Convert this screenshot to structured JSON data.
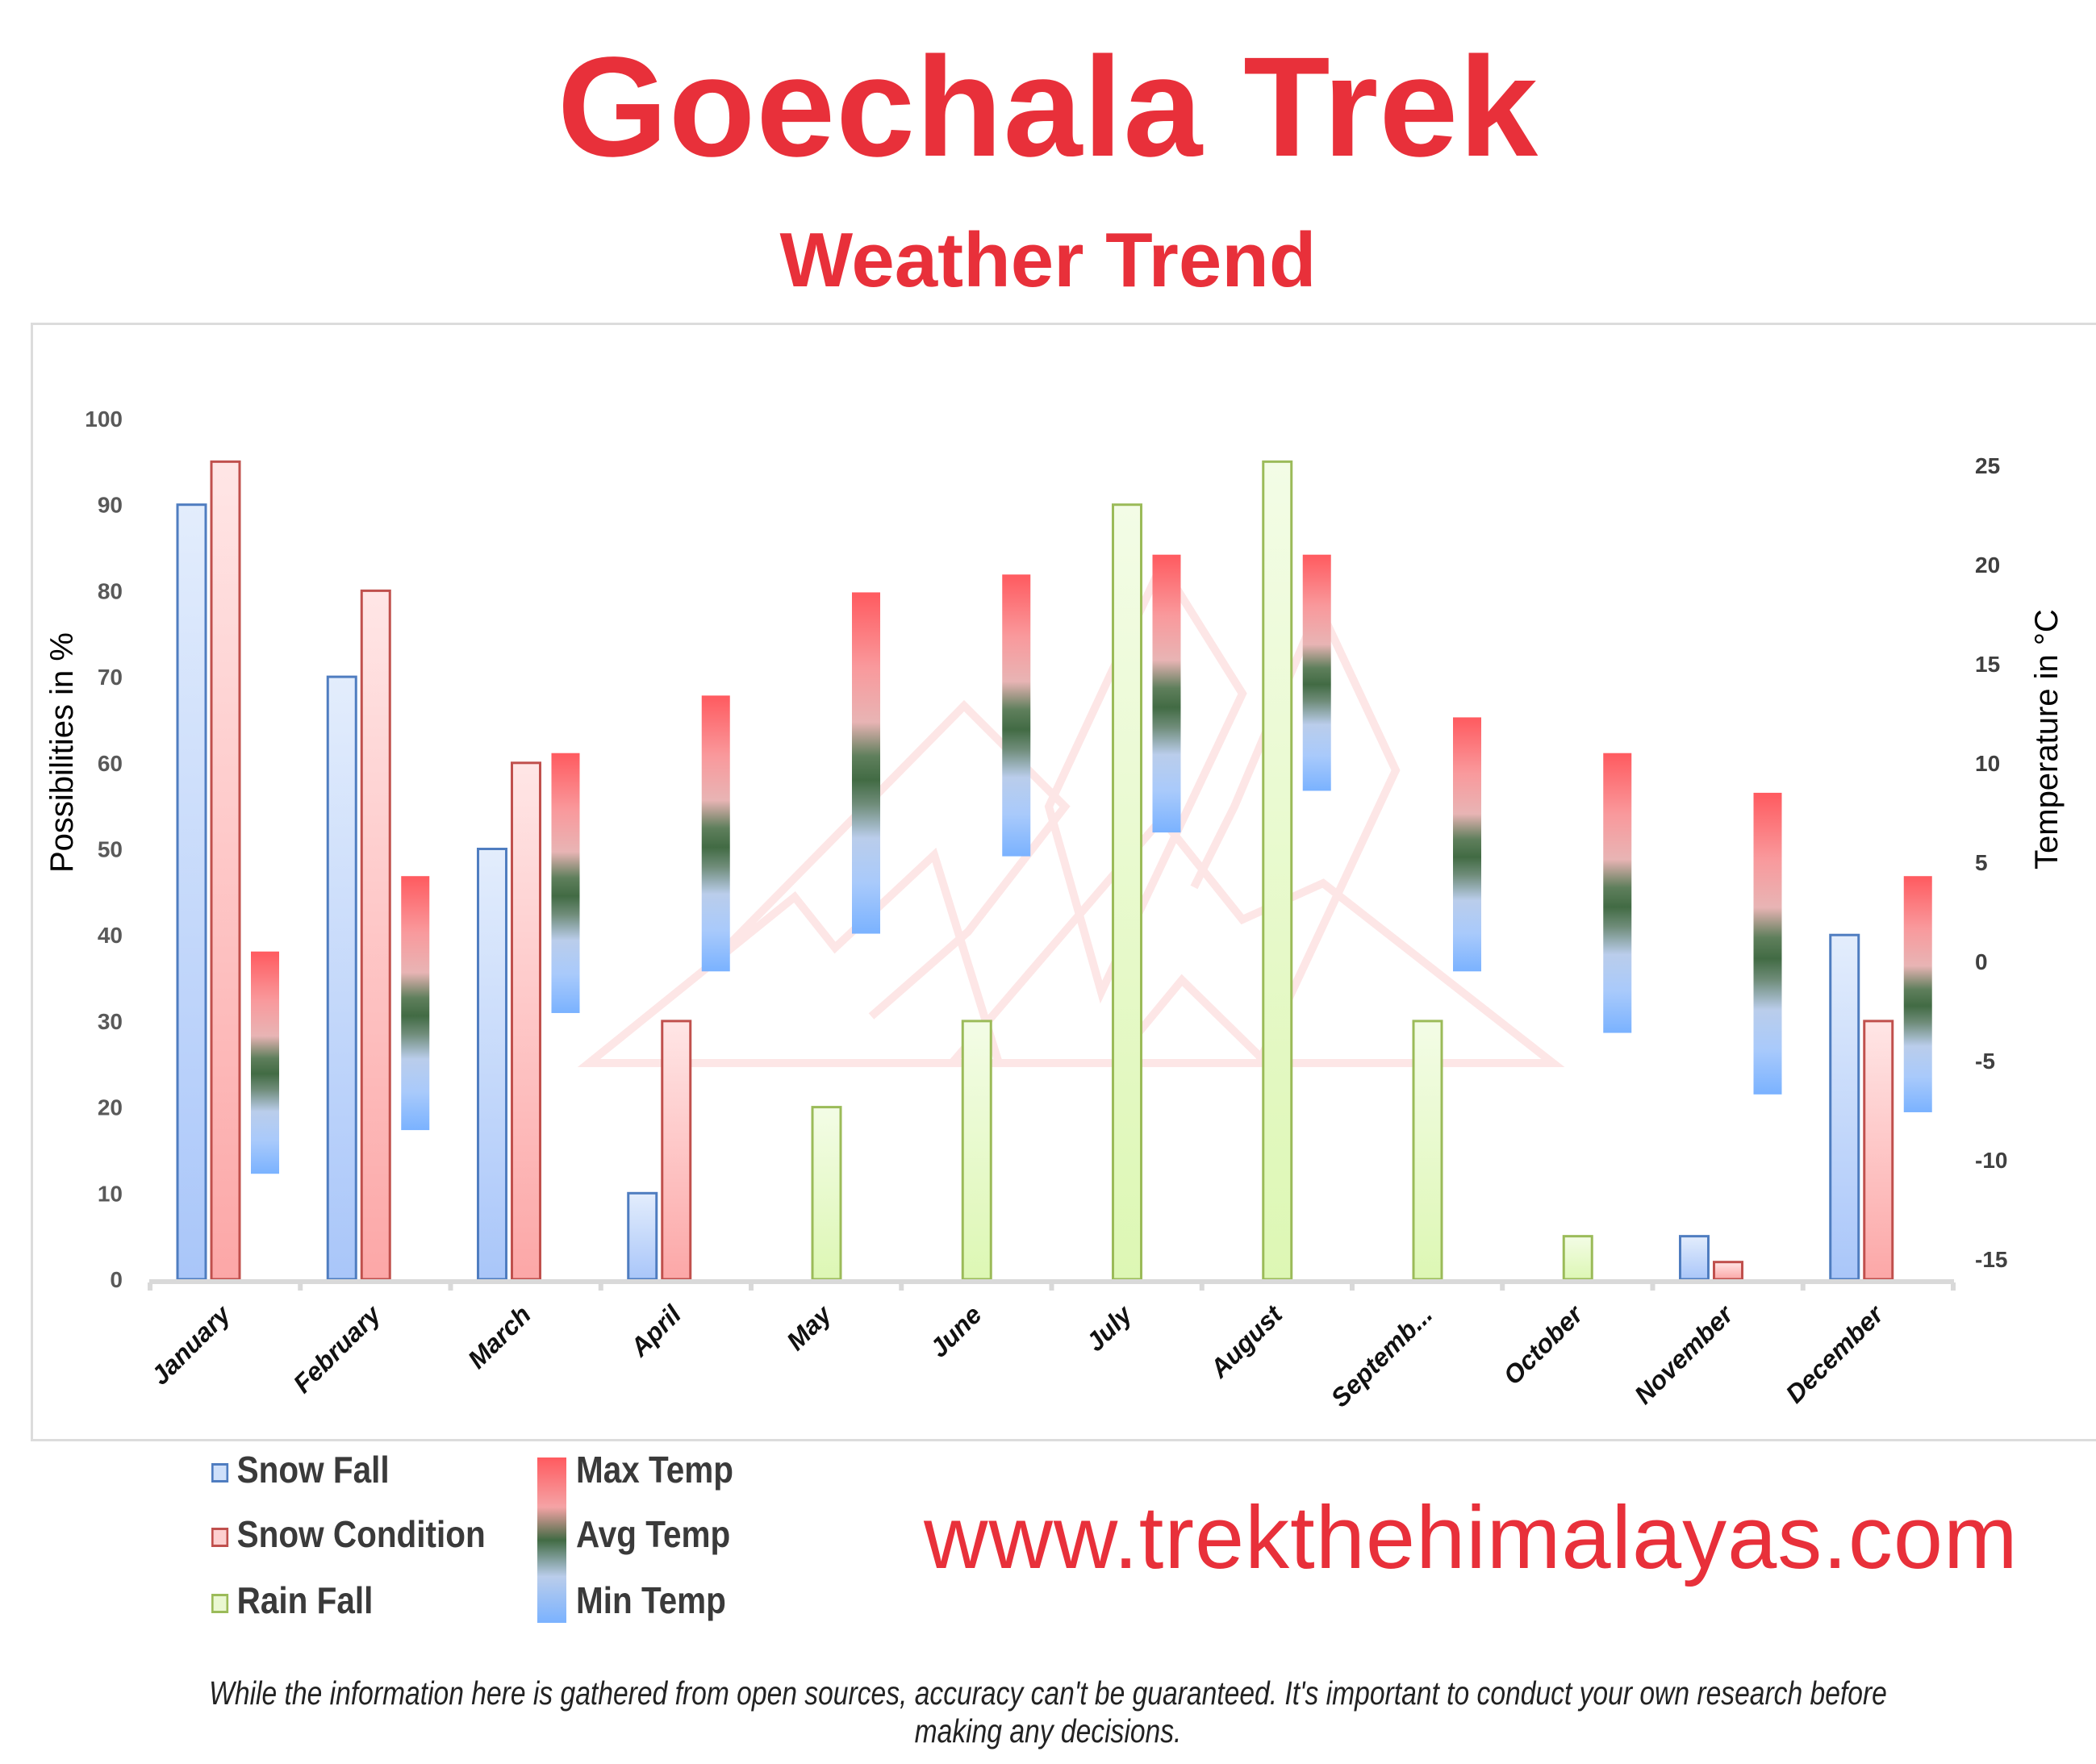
{
  "header": {
    "title": "Goechala Trek",
    "subtitle": "Weather Trend"
  },
  "colors": {
    "brand_red": "#E8303A",
    "snow_fall_fill": "#B7CFF7",
    "snow_fall_stroke": "#4F7DC0",
    "snow_condition_fill": "#FDBDBD",
    "snow_condition_stroke": "#C0504D",
    "rain_fall_fill": "#E6F7C8",
    "rain_fall_stroke": "#9BBB59",
    "temp_max": "#FF5A5F",
    "temp_avg": "#426B44",
    "temp_min": "#7AB2FF",
    "watermark": "#FDE3E3"
  },
  "legend": {
    "snow_fall": "Snow Fall",
    "snow_condition": "Snow Condition",
    "rain_fall": "Rain Fall",
    "max_temp": "Max Temp",
    "avg_temp": "Avg Temp",
    "min_temp": "Min Temp"
  },
  "footer": {
    "url": "www.trekthehimalayas.com",
    "disclaimer": "While the information here is gathered from open sources, accuracy can't be guaranteed. It's important to conduct your own research before making any decisions."
  },
  "chart_data": {
    "type": "bar",
    "title": "Goechala Trek Weather Trend",
    "categories": [
      "January",
      "February",
      "March",
      "April",
      "May",
      "June",
      "July",
      "August",
      "Septemb...",
      "October",
      "November",
      "December"
    ],
    "ylabel": "Possibilities in %",
    "ylabel_right": "Temperature in °C",
    "ylim": [
      0,
      100
    ],
    "ylim_right": [
      -15,
      25
    ],
    "yticks": [
      0,
      10,
      20,
      30,
      40,
      50,
      60,
      70,
      80,
      90,
      100
    ],
    "yticks_right": [
      -15,
      -10,
      -5,
      0,
      5,
      10,
      15,
      20,
      25
    ],
    "grid": false,
    "legend_position": "bottom-left",
    "series": [
      {
        "name": "Snow Fall",
        "axis": "left",
        "values": [
          90,
          70,
          50,
          10,
          0,
          0,
          0,
          0,
          0,
          0,
          5,
          40
        ]
      },
      {
        "name": "Snow Condition",
        "axis": "left",
        "values": [
          95,
          80,
          60,
          30,
          2,
          0,
          0,
          0,
          0,
          0,
          2,
          30
        ]
      },
      {
        "name": "Rain Fall",
        "axis": "left",
        "values": [
          0,
          0,
          0,
          0,
          20,
          30,
          90,
          95,
          30,
          5,
          0,
          0
        ]
      },
      {
        "name": "Max Temp",
        "axis": "right",
        "values": [
          0.5,
          4.3,
          10.5,
          13.4,
          18.6,
          19.5,
          20.5,
          20.5,
          12.3,
          10.5,
          8.5,
          4.3
        ]
      },
      {
        "name": "Min Temp",
        "axis": "right",
        "values": [
          -10.7,
          -8.5,
          -2.6,
          -0.5,
          1.4,
          5.3,
          6.5,
          8.6,
          -0.5,
          -3.6,
          -6.7,
          -7.6
        ]
      }
    ]
  }
}
